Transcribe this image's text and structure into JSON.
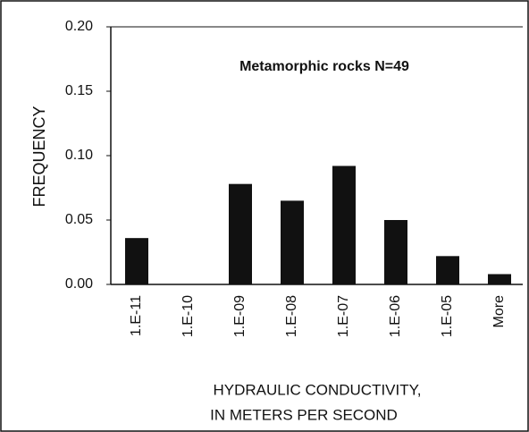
{
  "chart_data": {
    "type": "bar",
    "title": "Metamorphic rocks  N=49",
    "y_label": "FREQUENCY",
    "x_label": [
      "HYDRAULIC CONDUCTIVITY,",
      "IN METERS PER SECOND"
    ],
    "categories": [
      "1.E-11",
      "1.E-10",
      "1.E-09",
      "1.E-08",
      "1.E-07",
      "1.E-06",
      "1.E-05",
      "More"
    ],
    "values": [
      0.036,
      0,
      0.078,
      0.065,
      0.092,
      0.05,
      0.022,
      0.008
    ],
    "color": "#111111",
    "ylim": [
      0,
      0.2
    ],
    "yticks": [
      {
        "value": 0,
        "label": "0.00"
      },
      {
        "value": 0.05,
        "label": "0.05"
      },
      {
        "value": 0.1,
        "label": "0.10"
      },
      {
        "value": 0.15,
        "label": "0.15"
      },
      {
        "value": 0.2,
        "label": "0.20"
      }
    ],
    "grid": false
  }
}
